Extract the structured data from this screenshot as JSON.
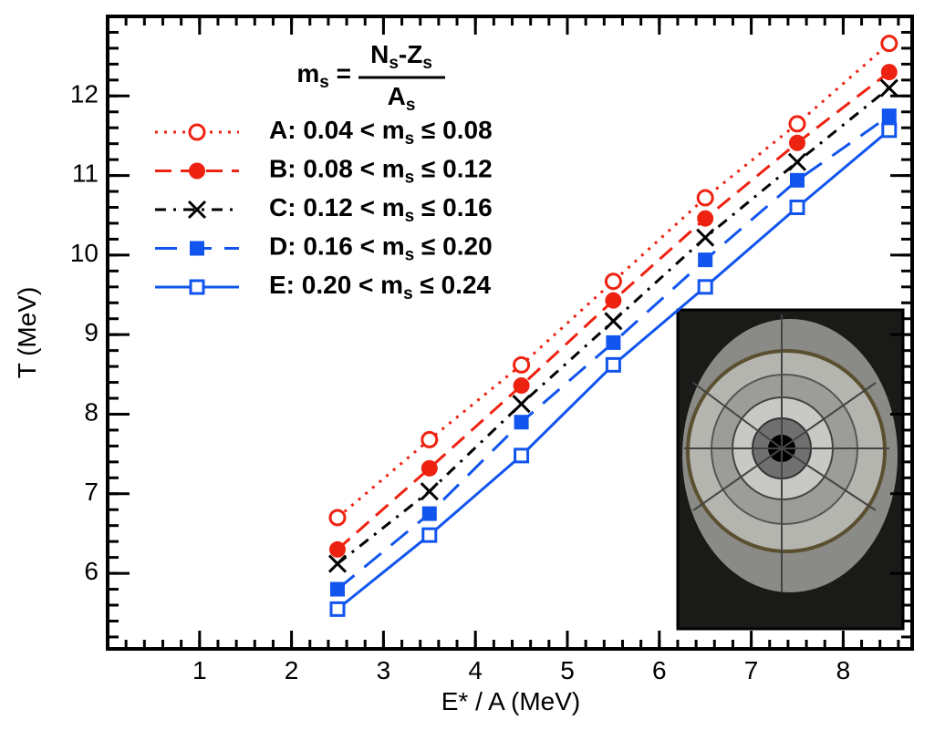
{
  "chart_data": {
    "type": "line",
    "xlabel": "E* / A (MeV)",
    "ylabel": "T (MeV)",
    "formula": {
      "lhs": "ms =",
      "numerator": "Ns-Zs",
      "denominator": "As"
    },
    "x": [
      2.5,
      3.5,
      4.5,
      5.5,
      6.5,
      7.5,
      8.5
    ],
    "series": [
      {
        "name": "A: 0.04 < ms ≤ 0.08",
        "color": "#ee2211",
        "marker": "open-circle",
        "dash": "dotted",
        "values": [
          6.7,
          7.68,
          8.62,
          9.67,
          10.72,
          11.65,
          12.66
        ]
      },
      {
        "name": "B: 0.08 < ms ≤ 0.12",
        "color": "#ee2211",
        "marker": "filled-circle",
        "dash": "dashed",
        "values": [
          6.3,
          7.32,
          8.36,
          9.43,
          10.46,
          11.41,
          12.3
        ]
      },
      {
        "name": "C: 0.12 < ms ≤ 0.16",
        "color": "#000000",
        "marker": "cross",
        "dash": "dashdot",
        "values": [
          6.12,
          7.03,
          8.13,
          9.17,
          10.22,
          11.17,
          12.1
        ]
      },
      {
        "name": "D: 0.16 < ms ≤ 0.20",
        "color": "#1155ee",
        "marker": "filled-square",
        "dash": "longdash",
        "values": [
          5.8,
          6.75,
          7.9,
          8.9,
          9.94,
          10.94,
          11.75
        ]
      },
      {
        "name": "E: 0.20 < ms ≤ 0.24",
        "color": "#1155ee",
        "marker": "open-square",
        "dash": "solid",
        "values": [
          5.55,
          6.48,
          7.48,
          8.62,
          9.6,
          10.6,
          11.57
        ]
      }
    ],
    "xlim": [
      0,
      8.75
    ],
    "ylim": [
      5.05,
      13
    ],
    "xticks": [
      1,
      2,
      3,
      4,
      5,
      6,
      7,
      8
    ],
    "yticks": [
      6,
      7,
      8,
      9,
      10,
      11,
      12
    ]
  }
}
